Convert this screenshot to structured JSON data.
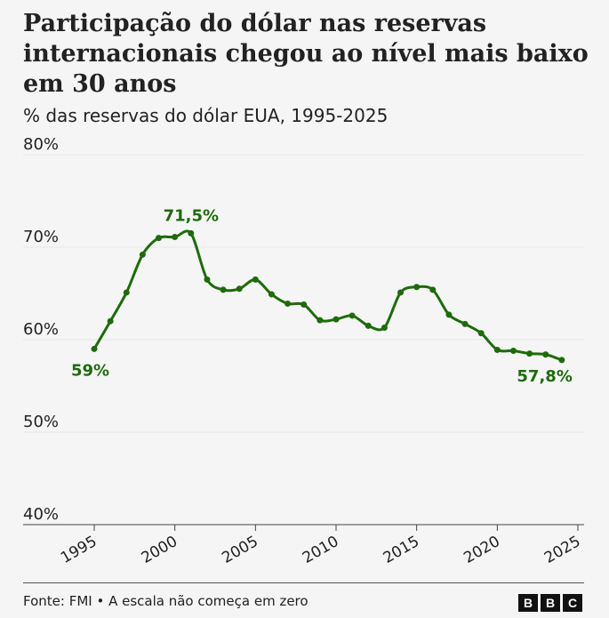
{
  "title": "Participação do dólar nas reservas internacionais chegou ao nível mais baixo em 30 anos",
  "subtitle": "% das reservas do dólar EUA, 1995-2025",
  "source": "Fonte: FMI • A escala não começa em zero",
  "logo": [
    "B",
    "B",
    "C"
  ],
  "colors": {
    "line": "#1e6b0c",
    "grid": "#e6e6e6",
    "text": "#222222"
  },
  "chart_data": {
    "type": "line",
    "title": "Participação do dólar nas reservas internacionais chegou ao nível mais baixo em 30 anos",
    "subtitle": "% das reservas do dólar EUA, 1995-2025",
    "xlabel": "",
    "ylabel": "",
    "xlim": [
      1995,
      2025
    ],
    "ylim": [
      40,
      80
    ],
    "x_ticks": [
      "1995",
      "2000",
      "2005",
      "2010",
      "2015",
      "2020",
      "2025"
    ],
    "y_ticks": [
      "40%",
      "50%",
      "60%",
      "70%",
      "80%"
    ],
    "grid": true,
    "x": [
      1995,
      1996,
      1997,
      1998,
      1999,
      2000,
      2001,
      2002,
      2003,
      2004,
      2005,
      2006,
      2007,
      2008,
      2009,
      2010,
      2011,
      2012,
      2013,
      2014,
      2015,
      2016,
      2017,
      2018,
      2019,
      2020,
      2021,
      2022,
      2023,
      2024
    ],
    "values": [
      59.0,
      62.0,
      65.1,
      69.2,
      71.0,
      71.1,
      71.5,
      66.5,
      65.4,
      65.5,
      66.5,
      64.9,
      63.9,
      63.8,
      62.1,
      62.2,
      62.6,
      61.5,
      61.3,
      65.1,
      65.7,
      65.4,
      62.7,
      61.7,
      60.7,
      58.9,
      58.8,
      58.5,
      58.4,
      57.8
    ],
    "annotations": [
      {
        "x": 1995,
        "text": "59%"
      },
      {
        "x": 2001,
        "text": "71,5%"
      },
      {
        "x": 2024,
        "text": "57,8%"
      }
    ]
  }
}
